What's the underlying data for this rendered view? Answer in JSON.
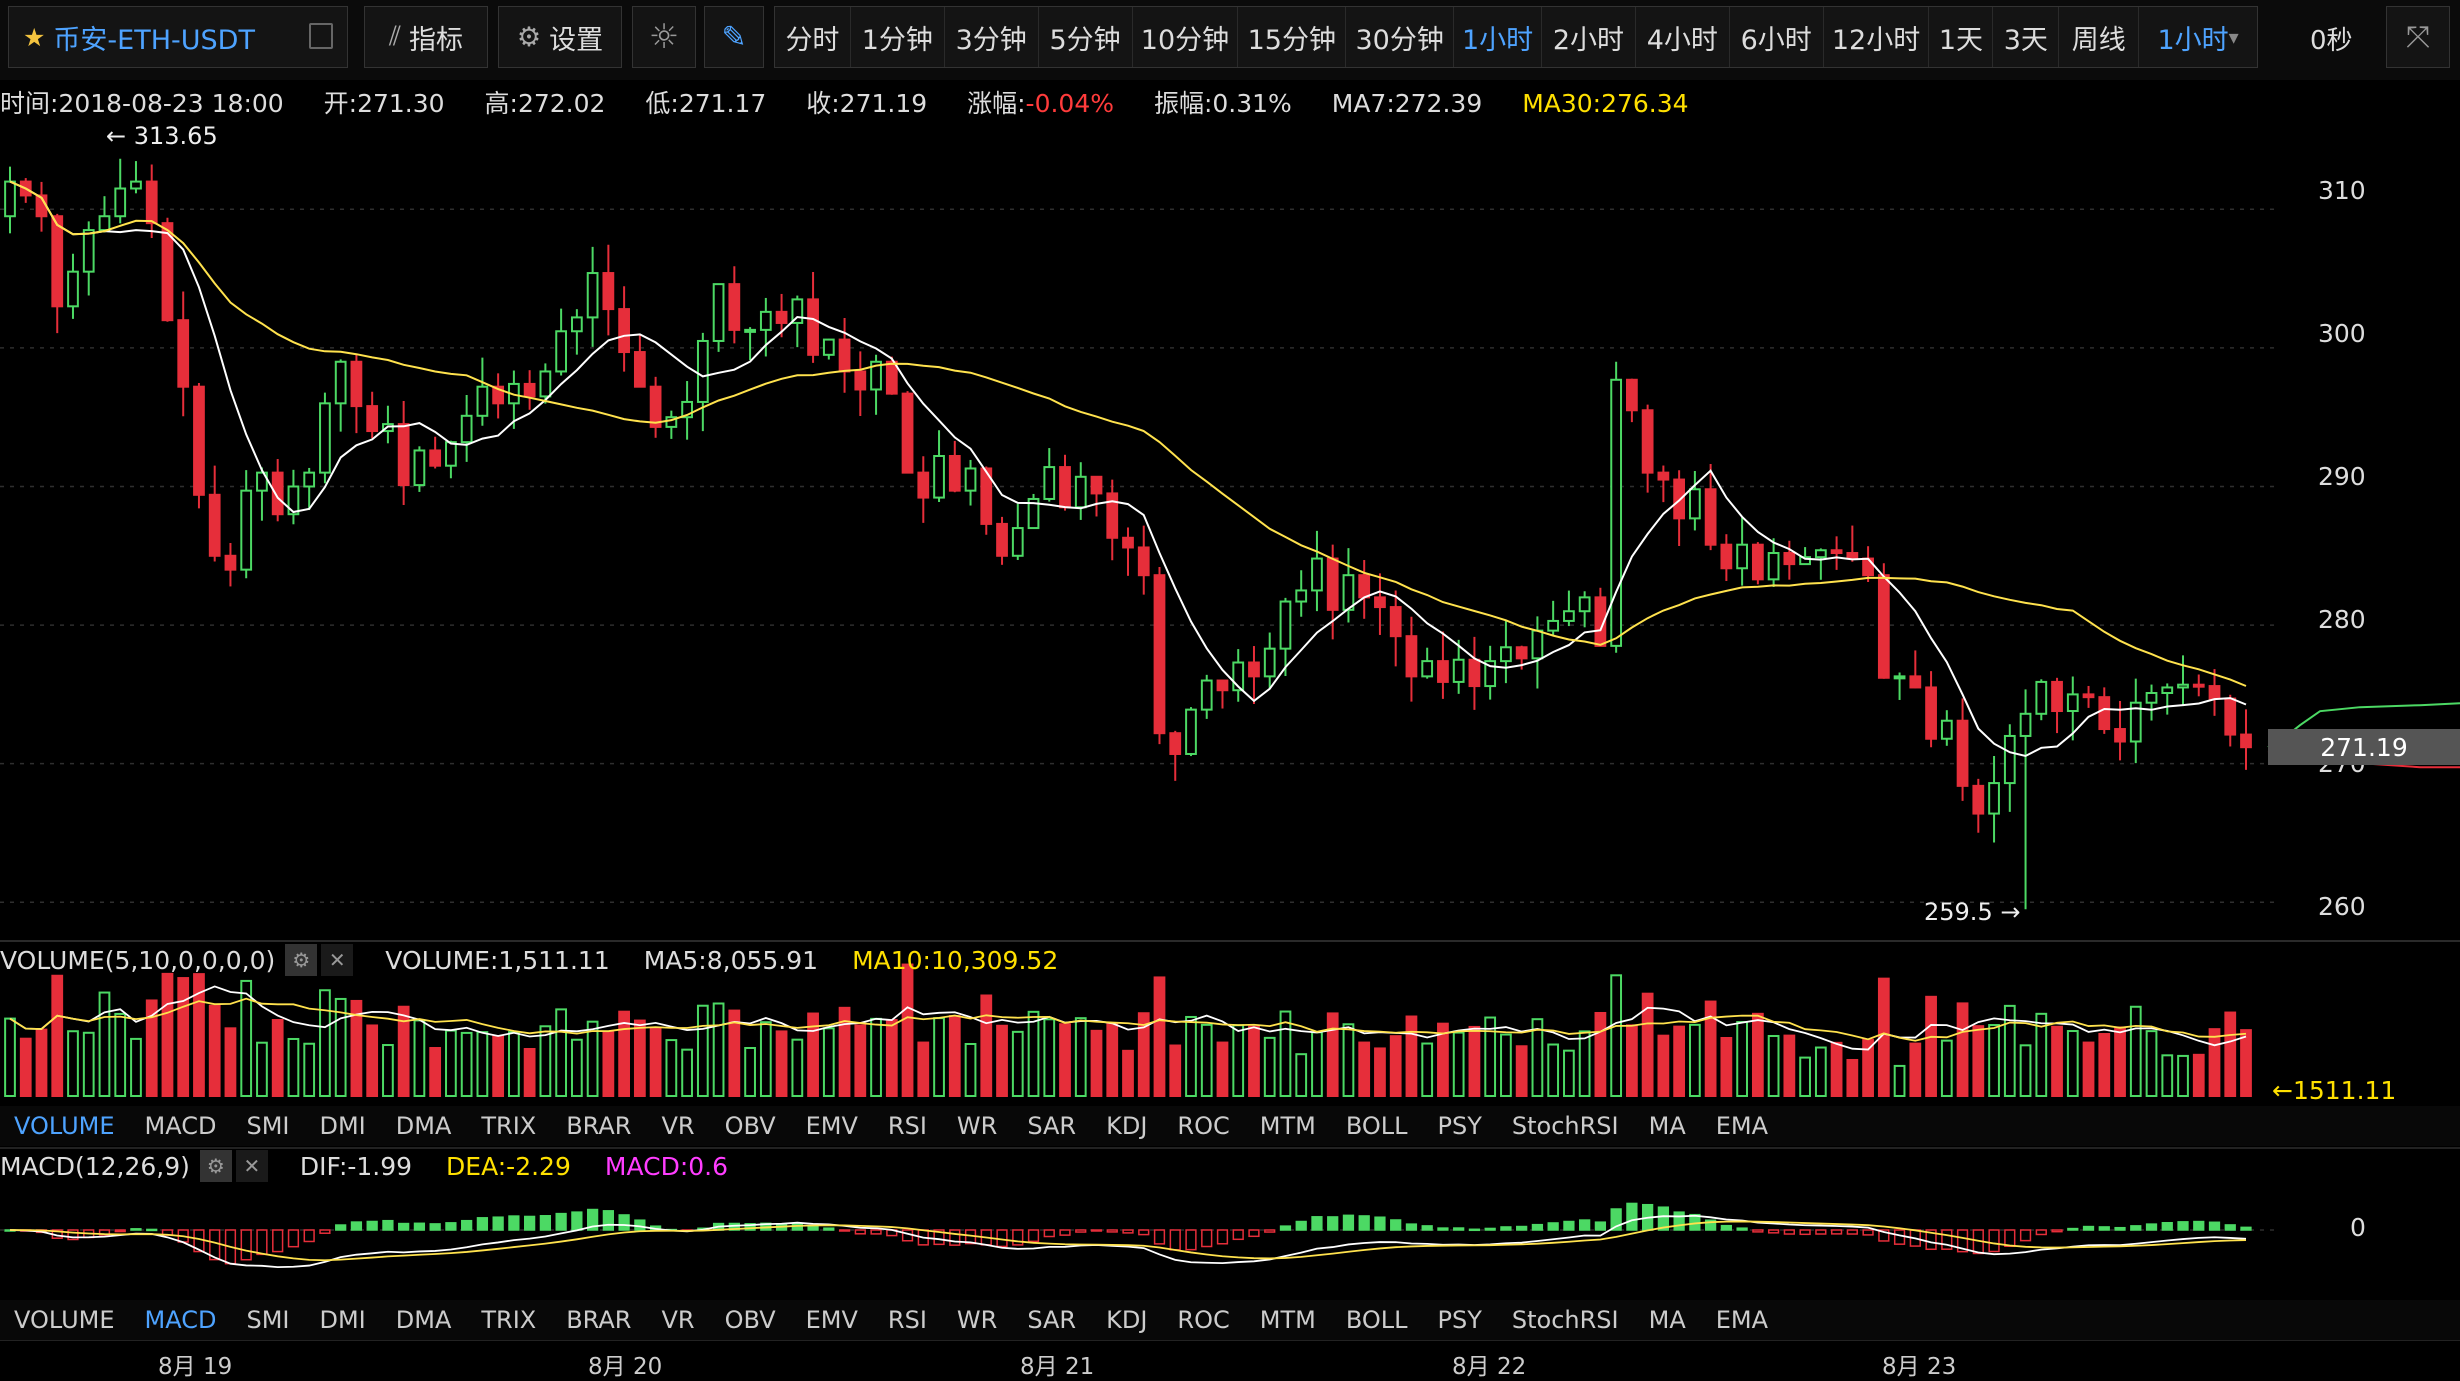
{
  "toolbar": {
    "symbol": "币安-ETH-USDT",
    "indicators_label": "指标",
    "settings_label": "设置",
    "intervals": [
      "分时",
      "1分钟",
      "3分钟",
      "5分钟",
      "10分钟",
      "15分钟",
      "30分钟",
      "1小时",
      "2小时",
      "4小时",
      "6小时",
      "12小时",
      "1天",
      "3天",
      "周线"
    ],
    "active_interval": "1小时",
    "dropdown_value": "1小时",
    "countdown": "0秒"
  },
  "info": {
    "time": "时间:2018-08-23 18:00",
    "open": "开:271.30",
    "high": "高:272.02",
    "low": "低:271.17",
    "close": "收:271.19",
    "change_label": "涨幅:",
    "change_value": "-0.04%",
    "amplitude": "振幅:0.31%",
    "ma7": "MA7:272.39",
    "ma30": "MA30:276.34"
  },
  "price_axis": [
    "310",
    "300",
    "290",
    "280",
    "270",
    "260"
  ],
  "current_price": "271.19",
  "annotations": {
    "high": "← 313.65",
    "low": "259.5 →"
  },
  "volume_panel": {
    "name": "VOLUME(5,10,0,0,0,0)",
    "volume": "VOLUME:1,511.11",
    "ma5": "MA5:8,055.91",
    "ma10": "MA10:10,309.52",
    "last_label": "←1511.11"
  },
  "macd_panel": {
    "name": "MACD(12,26,9)",
    "dif": "DIF:-1.99",
    "dea": "DEA:-2.29",
    "macd": "MACD:0.6",
    "zero_label": "0"
  },
  "indicator_tabs": [
    "VOLUME",
    "MACD",
    "SMI",
    "DMI",
    "DMA",
    "TRIX",
    "BRAR",
    "VR",
    "OBV",
    "EMV",
    "RSI",
    "WR",
    "SAR",
    "KDJ",
    "ROC",
    "MTM",
    "BOLL",
    "PSY",
    "StochRSI",
    "MA",
    "EMA"
  ],
  "dates": [
    "8月 19",
    "8月 20",
    "8月 21",
    "8月 22",
    "8月 23"
  ],
  "colors": {
    "up": "#4cd964",
    "down": "#e62e3a",
    "ma7": "#ffffff",
    "ma30": "#ffe24d",
    "accent": "#4ea3ff",
    "macd": "#ff3dff"
  },
  "chart_data": {
    "type": "candlestick",
    "interval": "1小时",
    "ylim": [
      258,
      315
    ],
    "close": [
      312,
      311,
      309.5,
      303,
      305.5,
      308.5,
      309.5,
      311.5,
      312,
      309,
      302,
      297.2,
      289.4,
      285,
      284,
      289.7,
      291,
      288,
      290,
      291,
      296,
      299,
      295.8,
      294,
      294.5,
      290.1,
      292.6,
      291.5,
      293.2,
      295.1,
      297.2,
      296,
      297.4,
      296.5,
      298.3,
      301.2,
      302.2,
      305.4,
      302.8,
      299.7,
      297.2,
      294.3,
      295,
      296.1,
      300.5,
      304.6,
      301.3,
      301.3,
      302.6,
      301.8,
      303.5,
      299.5,
      300.6,
      298.3,
      297,
      299,
      296.7,
      291,
      289.2,
      292.2,
      289.7,
      291.3,
      287.3,
      285,
      287,
      289.1,
      291.4,
      288.5,
      290.7,
      289.5,
      286.3,
      285.6,
      283.6,
      272.2,
      270.7,
      273.9,
      276,
      275.3,
      277.3,
      276.3,
      278.3,
      281.7,
      282.5,
      284.8,
      281.1,
      283.6,
      282,
      281.3,
      279.2,
      276.3,
      277.4,
      275.9,
      277.5,
      275.6,
      277.4,
      278.4,
      277.6,
      279.6,
      280.3,
      281,
      282,
      278.5,
      297.7,
      295.5,
      291,
      290.5,
      287.7,
      289.8,
      285.8,
      284.1,
      285.8,
      283.3,
      285.2,
      284.4,
      284.9,
      285.4,
      285.2,
      284.8,
      283.6,
      276.2,
      276.3,
      275.5,
      271.8,
      273.1,
      268.4,
      266.4,
      268.6,
      272,
      273.6,
      275.9,
      273.8,
      275,
      274.8,
      272.5,
      271.6,
      274.4,
      275.1,
      275.5,
      275.7,
      275.6,
      274.7,
      272.1,
      271.19
    ],
    "ma7_last": 272.39,
    "ma30_last": 276.34,
    "high_mark": 313.65,
    "low_mark": 259.5
  }
}
